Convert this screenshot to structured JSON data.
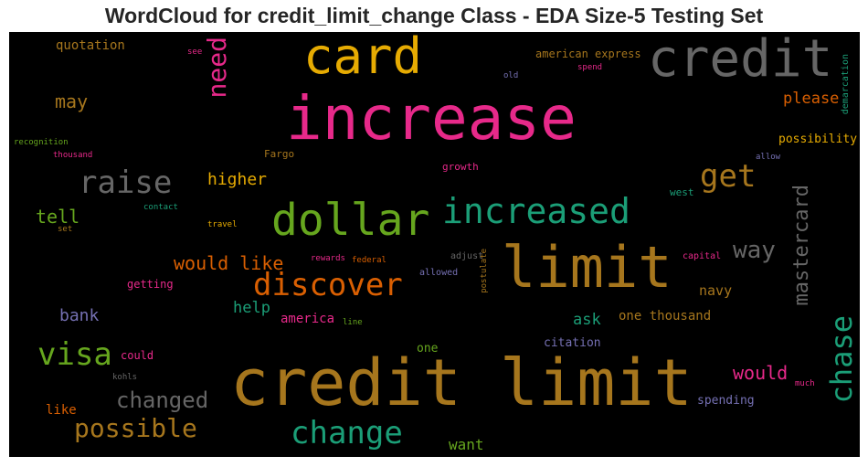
{
  "title": "WordCloud for credit_limit_change Class - EDA Size-5 Testing Set",
  "words": {
    "increase": "increase",
    "credit_limit": "credit limit",
    "limit": "limit",
    "credit": "credit",
    "card": "card",
    "dollar": "dollar",
    "increased": "increased",
    "raise": "raise",
    "discover": "discover",
    "change": "change",
    "visa": "visa",
    "get": "get",
    "need": "need",
    "chase": "chase",
    "mastercard": "mastercard",
    "possible": "possible",
    "changed": "changed",
    "way": "way",
    "would_like": "would like",
    "would": "would",
    "tell": "tell",
    "higher": "higher",
    "may": "may",
    "please": "please",
    "bank": "bank",
    "help": "help",
    "ask": "ask",
    "navy": "navy",
    "one_thousand": "one thousand",
    "america": "america",
    "quotation": "quotation",
    "want": "want",
    "like": "like",
    "spending": "spending",
    "possibility": "possibility",
    "citation": "citation",
    "one": "one",
    "could": "could",
    "getting": "getting",
    "american_express": "american express",
    "growth": "growth",
    "west": "west",
    "fargo": "Fargo",
    "demarcation": "demarcation",
    "adjust": "adjust",
    "allowed": "allowed",
    "postulate": "postulate",
    "capital": "capital",
    "rewards": "rewards",
    "federal": "federal",
    "recognition": "recognition",
    "thousand": "thousand",
    "contact": "contact",
    "travel": "travel",
    "set": "set",
    "see": "see",
    "spend": "spend",
    "old": "old",
    "allow": "allow",
    "line": "line",
    "kohls": "kohls",
    "much": "much"
  },
  "colors": {
    "pink": "#e7298a",
    "brown": "#a6761d",
    "gray": "#666666",
    "gold": "#e6ab02",
    "green": "#66a61e",
    "teal": "#1b9e77",
    "orange": "#d95f02",
    "purple": "#7570b3"
  }
}
